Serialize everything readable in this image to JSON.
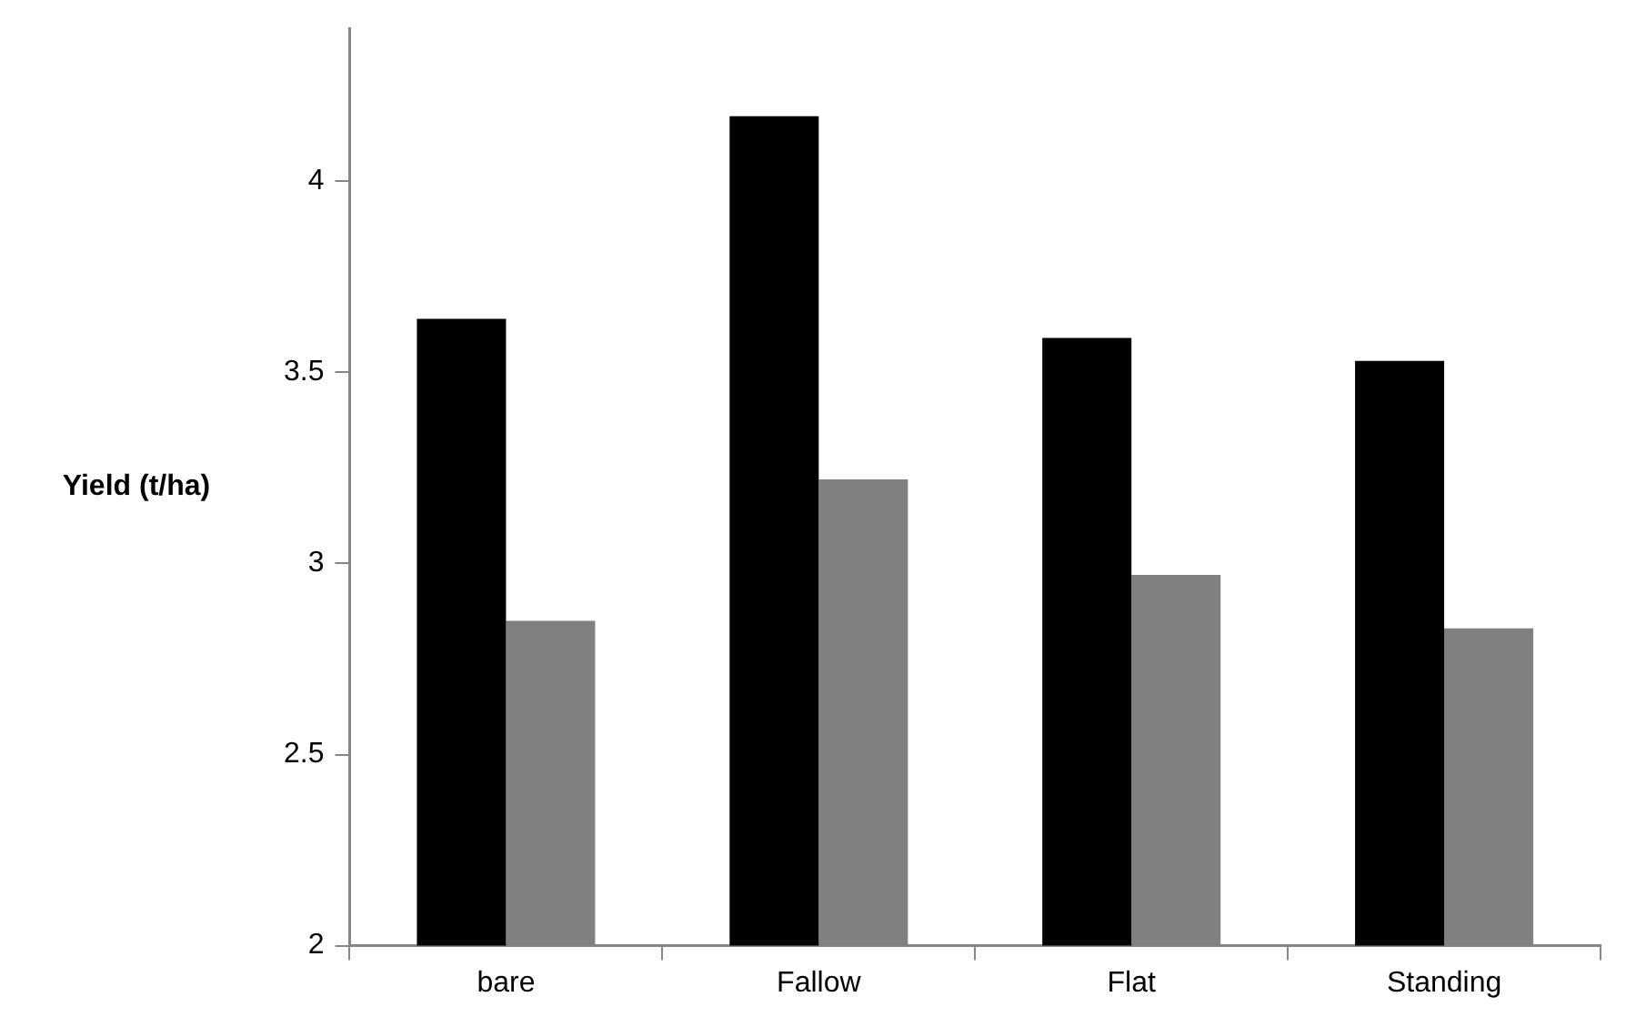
{
  "chart_data": {
    "type": "bar",
    "ylabel": "Yield (t/ha)",
    "categories": [
      "bare",
      "Fallow",
      "Flat",
      "Standing"
    ],
    "series": [
      {
        "color": "#000000",
        "values": [
          3.64,
          4.17,
          3.59,
          3.53
        ]
      },
      {
        "color": "#808080",
        "values": [
          2.85,
          3.22,
          2.97,
          2.83
        ]
      }
    ],
    "ylim": [
      2,
      4.4
    ],
    "yticks": [
      2,
      2.5,
      3,
      3.5,
      4
    ],
    "grid": false,
    "legend": false
  }
}
